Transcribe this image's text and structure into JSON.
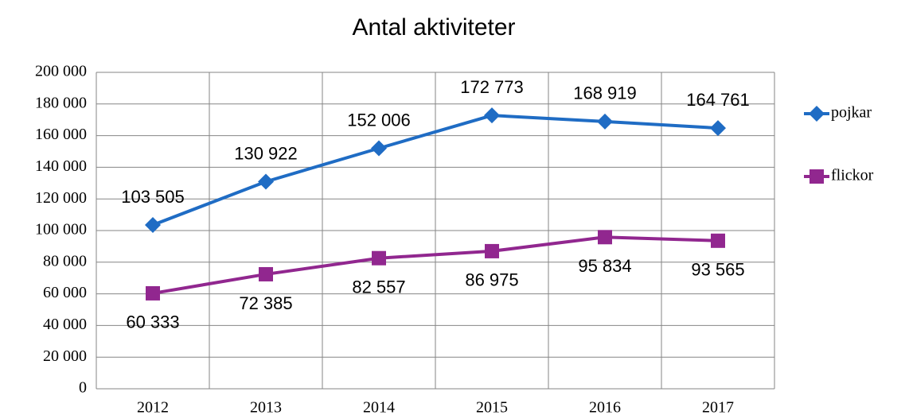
{
  "chart_data": {
    "type": "line",
    "title": "Antal aktiviteter",
    "categories": [
      "2012",
      "2013",
      "2014",
      "2015",
      "2016",
      "2017"
    ],
    "series": [
      {
        "name": "pojkar",
        "color": "#1f6cc4",
        "marker": "diamond",
        "values": [
          103505,
          130922,
          152006,
          172773,
          168919,
          164761
        ],
        "value_labels": [
          "103 505",
          "130 922",
          "152 006",
          "172 773",
          "168 919",
          "164 761"
        ],
        "label_position": "above"
      },
      {
        "name": "flickor",
        "color": "#91278f",
        "marker": "square",
        "values": [
          60333,
          72385,
          82557,
          86975,
          95834,
          93565
        ],
        "value_labels": [
          "60 333",
          "72 385",
          "82 557",
          "86 975",
          "95 834",
          "93 565"
        ],
        "label_position": "below"
      }
    ],
    "ylim": [
      0,
      200000
    ],
    "yticks": [
      0,
      {
        "value": 20000,
        "label": "20 000"
      },
      {
        "value": 40000,
        "label": "40 000"
      },
      {
        "value": 60000,
        "label": "60 000"
      },
      {
        "value": 80000,
        "label": "80 000"
      },
      {
        "value": 100000,
        "label": "100 000"
      },
      {
        "value": 120000,
        "label": "120 000"
      },
      {
        "value": 140000,
        "label": "140 000"
      },
      {
        "value": 160000,
        "label": "160 000"
      },
      {
        "value": 180000,
        "label": "180 000"
      },
      {
        "value": 200000,
        "label": "200 000"
      }
    ],
    "grid": true,
    "legend": "right"
  }
}
